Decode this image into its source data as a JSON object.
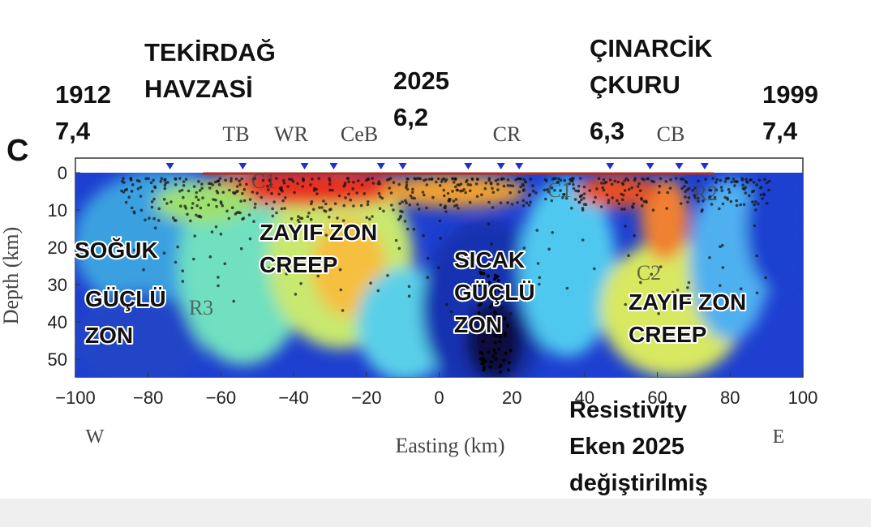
{
  "panel_label": "C",
  "annotations": [
    {
      "lines": [
        "1912",
        "7,4"
      ]
    },
    {
      "lines": [
        "TEKİRDAĞ",
        "HAVZASİ"
      ]
    },
    {
      "lines": [
        "2025",
        "6,2"
      ]
    },
    {
      "lines": [
        "ÇINARCİK",
        "ÇKURU"
      ]
    },
    {
      "lines": [
        "6,3"
      ]
    },
    {
      "lines": [
        "1999",
        "7,4"
      ]
    },
    {
      "lines": [
        "Resistivity",
        "Eken 2025",
        "değiştirilmiş"
      ]
    }
  ],
  "overlay_labels": [
    {
      "lines": [
        "SOĞUK"
      ]
    },
    {
      "lines": [
        "GÜÇLÜ",
        "ZON"
      ]
    },
    {
      "lines": [
        "ZAYIF ZON",
        "CREEP"
      ]
    },
    {
      "lines": [
        "SICAK",
        "GÜÇLÜ",
        "ZON"
      ]
    },
    {
      "lines": [
        "ZAYIF ZON",
        "CREEP"
      ]
    }
  ],
  "stations": [
    "TB",
    "WR",
    "CeB",
    "CR",
    "CB"
  ],
  "zones": [
    "C1",
    "C1",
    "R2",
    "R3",
    "C2"
  ],
  "x_axis": {
    "label": "Easting (km)",
    "ticks": [
      {
        "value": -100,
        "label": "−100"
      },
      {
        "value": -80,
        "label": "−80"
      },
      {
        "value": -60,
        "label": "−60"
      },
      {
        "value": -40,
        "label": "−40"
      },
      {
        "value": -20,
        "label": "−20"
      },
      0,
      20,
      40,
      60,
      80,
      100
    ],
    "ends": [
      "W",
      "E"
    ]
  },
  "y_axis": {
    "label": "Depth (km)",
    "ticks": [
      0,
      10,
      20,
      30,
      40,
      50
    ]
  }
}
